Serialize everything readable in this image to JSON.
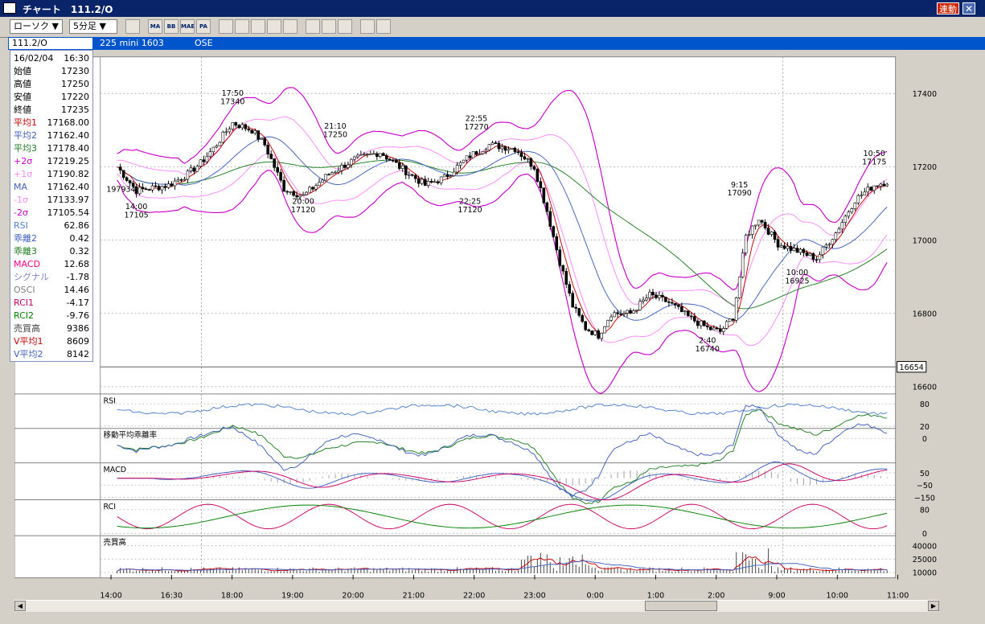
{
  "window": {
    "title": "チャート　111.2/O",
    "link_label": "連動",
    "close_label": "✕"
  },
  "toolbar": {
    "chart_type": "ローソク ▼",
    "interval": "5分足 ▼",
    "icons": [
      "tick-icon",
      "ma-icon",
      "bb-icon",
      "mae-icon",
      "pa-icon",
      "line-tool-icon",
      "fib-icon",
      "zoom-icon",
      "search-icon",
      "calc-icon",
      "pen-icon",
      "cursor-icon",
      "eraser-icon",
      "settings-icon",
      "chart-icon"
    ],
    "icon_labels": [
      "",
      "MA",
      "BB",
      "MAE",
      "PA",
      "",
      "",
      "",
      "",
      "",
      "",
      "",
      "",
      "",
      ""
    ]
  },
  "info": {
    "chart_id": "111.2/O",
    "symbol": "225 mini 1603",
    "exchange": "OSE"
  },
  "data_panel": {
    "date": "16/02/04",
    "time": "16:30",
    "rows": [
      {
        "label": "始値",
        "value": "17230",
        "color": "#000000"
      },
      {
        "label": "高値",
        "value": "17250",
        "color": "#000000"
      },
      {
        "label": "安値",
        "value": "17220",
        "color": "#000000"
      },
      {
        "label": "終値",
        "value": "17235",
        "color": "#000000"
      },
      {
        "label": "平均1",
        "value": "17168.00",
        "color": "#cc0000"
      },
      {
        "label": "平均2",
        "value": "17162.40",
        "color": "#4060c0"
      },
      {
        "label": "平均3",
        "value": "17178.40",
        "color": "#208020"
      },
      {
        "label": "+2σ",
        "value": "17219.25",
        "color": "#cc00cc"
      },
      {
        "label": "+1σ",
        "value": "17190.82",
        "color": "#ff88ff"
      },
      {
        "label": "MA",
        "value": "17162.40",
        "color": "#4060c0"
      },
      {
        "label": "-1σ",
        "value": "17133.97",
        "color": "#ff88ff"
      },
      {
        "label": "-2σ",
        "value": "17105.54",
        "color": "#cc00cc"
      },
      {
        "label": "RSI",
        "value": "62.86",
        "color": "#5080d0"
      },
      {
        "label": "乖離2",
        "value": "0.42",
        "color": "#4060c0"
      },
      {
        "label": "乖離3",
        "value": "0.32",
        "color": "#208020"
      },
      {
        "label": "MACD",
        "value": "12.68",
        "color": "#ff0080"
      },
      {
        "label": "シグナル",
        "value": "-1.78",
        "color": "#8080d0"
      },
      {
        "label": "OSCI",
        "value": "14.46",
        "color": "#808080"
      },
      {
        "label": "RCI1",
        "value": "-4.17",
        "color": "#cc0066"
      },
      {
        "label": "RCI2",
        "value": "-9.76",
        "color": "#008000"
      },
      {
        "label": "売買高",
        "value": "9386",
        "color": "#404040"
      },
      {
        "label": "V平均1",
        "value": "8609",
        "color": "#cc0000"
      },
      {
        "label": "V平均2",
        "value": "8142",
        "color": "#4060c0"
      }
    ]
  },
  "price_axis": {
    "ticks": [
      "17400",
      "17200",
      "17000",
      "16800",
      "16600"
    ],
    "current": "16654"
  },
  "annotations": [
    {
      "t": "17:50",
      "v": "17340"
    },
    {
      "t": "21:10",
      "v": "17250"
    },
    {
      "t": "22:55",
      "v": "17270"
    },
    {
      "t": "10:50",
      "v": "17175"
    },
    {
      "t": "9:15",
      "v": "17090"
    },
    {
      "t": "14:00",
      "v": "17105"
    },
    {
      "t": "20:00",
      "v": "17120"
    },
    {
      "t": "22:25",
      "v": "17120"
    },
    {
      "t": "10:00",
      "v": "16925"
    },
    {
      "t": "2:40",
      "v": "16740"
    }
  ],
  "cursor_label": "197934",
  "subpanels": [
    {
      "name": "RSI",
      "ticks": [
        "80",
        "20"
      ]
    },
    {
      "name": "移動平均乖離率",
      "ticks": [
        "0"
      ]
    },
    {
      "name": "MACD",
      "ticks": [
        "50",
        "−50",
        "−150"
      ]
    },
    {
      "name": "RCI",
      "ticks": [
        "80",
        "0"
      ]
    },
    {
      "name": "売買高",
      "ticks": [
        "40000",
        "25000",
        "10000"
      ]
    }
  ],
  "time_axis": [
    "14:00",
    "16:30",
    "18:00",
    "19:00",
    "20:00",
    "21:00",
    "22:00",
    "23:00",
    "0:00",
    "1:00",
    "2:00",
    "9:00",
    "10:00",
    "11:00"
  ],
  "colors": {
    "bb2": "#cc00cc",
    "bb1": "#ff88ff",
    "ma1": "#cc0000",
    "ma2": "#4060c0",
    "ma3": "#208020",
    "rsi": "#5080d0",
    "rci1": "#cc0066",
    "rci2": "#008000",
    "vol": "#404040"
  },
  "chart_data": {
    "type": "candlestick",
    "key_points": [
      {
        "time": "17:50",
        "value": 17340
      },
      {
        "time": "21:10",
        "value": 17250
      },
      {
        "time": "22:55",
        "value": 17270
      },
      {
        "time": "10:50",
        "value": 17175
      },
      {
        "time": "9:15",
        "value": 17090
      },
      {
        "time": "14:00",
        "value": 17105
      },
      {
        "time": "20:00",
        "value": 17120
      },
      {
        "time": "22:25",
        "value": 17120
      },
      {
        "time": "10:00",
        "value": 16925
      },
      {
        "time": "2:40",
        "value": 16740
      }
    ],
    "ylim": [
      16580,
      17500
    ],
    "current_price": 16654
  }
}
